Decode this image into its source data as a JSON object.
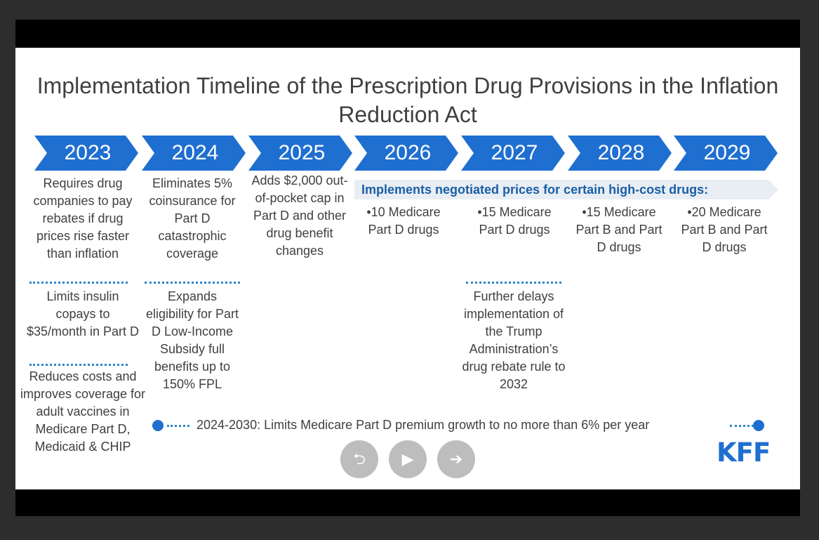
{
  "slide": {
    "title": "Implementation Timeline of the Prescription Drug Provisions in the Inflation Reduction Act",
    "years": [
      "2023",
      "2024",
      "2025",
      "2026",
      "2027",
      "2028",
      "2029"
    ],
    "col2023": {
      "a": "Requires drug companies to pay rebates if drug prices rise faster than inflation",
      "b": "Limits insulin copays to $35/month in Part D",
      "c": "Reduces costs and improves coverage for adult vaccines in Medicare Part D, Medicaid & CHIP"
    },
    "col2024": {
      "a": "Eliminates 5% coinsurance for Part D catastrophic coverage",
      "b": "Expands eligibility for Part D Low-Income Subsidy full benefits up to 150% FPL"
    },
    "col2025": {
      "a": "Adds $2,000 out-of-pocket cap in Part D and other drug benefit changes"
    },
    "negotiation": {
      "header": "Implements negotiated prices for certain high-cost drugs:",
      "y2026": "•10 Medicare Part D drugs",
      "y2027": "•15 Medicare Part D drugs",
      "y2028": "•15 Medicare Part B and Part D drugs",
      "y2029": "•20 Medicare Part B and Part D drugs"
    },
    "col2027b": "Further delays implementation of the Trump Administration’s drug rebate rule to 2032",
    "premium": "2024-2030: Limits Medicare Part D premium growth to no more than 6% per year",
    "logo": "KFF"
  },
  "nav": {
    "prev": "⮌",
    "play": "▶",
    "next": "➔"
  },
  "colors": {
    "accent": "#1f6fd0",
    "banner": "#e9eef5",
    "text": "#404040",
    "nav": "#bdbdbd"
  }
}
